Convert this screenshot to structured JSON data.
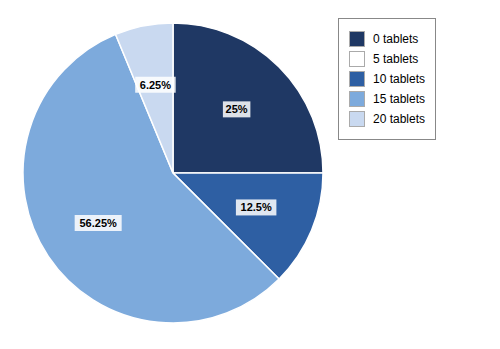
{
  "chart_data": {
    "type": "pie",
    "categories": [
      "0 tablets",
      "5 tablets",
      "10 tablets",
      "15 tablets",
      "20 tablets"
    ],
    "values": [
      25.0,
      0.0,
      12.5,
      56.25,
      6.25
    ],
    "value_labels": [
      "25%",
      null,
      "12.5%",
      "56.25%",
      "6.25%"
    ],
    "colors": [
      "#1f3864",
      "#ffffff",
      "#2e5fa3",
      "#7daadc",
      "#c9d9f0"
    ],
    "data_labels": true,
    "legend": "right"
  }
}
